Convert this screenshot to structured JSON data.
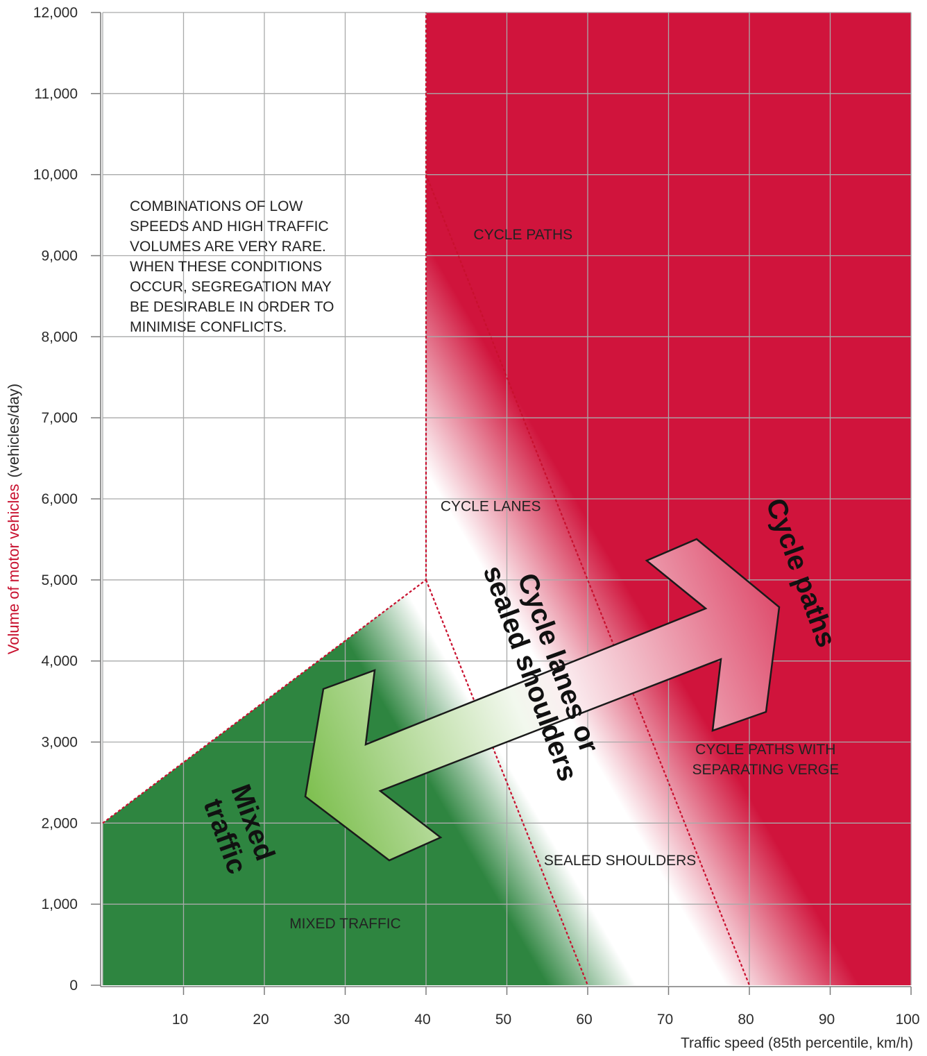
{
  "chart_data": {
    "type": "area",
    "xlabel": "Traffic speed (85th percentile, km/h)",
    "ylabel_main": "Volume of motor vehicles",
    "ylabel_unit": "(vehicles/day)",
    "xlim": [
      0,
      100
    ],
    "ylim": [
      0,
      12000
    ],
    "x_ticks": [
      {
        "value": 10,
        "label": "10"
      },
      {
        "value": 20,
        "label": "20"
      },
      {
        "value": 30,
        "label": "30"
      },
      {
        "value": 40,
        "label": "40"
      },
      {
        "value": 50,
        "label": "50"
      },
      {
        "value": 60,
        "label": "60"
      },
      {
        "value": 70,
        "label": "70"
      },
      {
        "value": 80,
        "label": "80"
      },
      {
        "value": 90,
        "label": "90"
      },
      {
        "value": 100,
        "label": "100"
      }
    ],
    "y_ticks": [
      {
        "value": 0,
        "label": "0"
      },
      {
        "value": 1000,
        "label": "1,000"
      },
      {
        "value": 2000,
        "label": "2,000"
      },
      {
        "value": 3000,
        "label": "3,000"
      },
      {
        "value": 4000,
        "label": "4,000"
      },
      {
        "value": 5000,
        "label": "5,000"
      },
      {
        "value": 6000,
        "label": "6,000"
      },
      {
        "value": 7000,
        "label": "7,000"
      },
      {
        "value": 8000,
        "label": "8,000"
      },
      {
        "value": 9000,
        "label": "9,000"
      },
      {
        "value": 10000,
        "label": "10,000"
      },
      {
        "value": 11000,
        "label": "11,000"
      },
      {
        "value": 12000,
        "label": "12,000"
      }
    ],
    "grid": true,
    "boundaries": [
      {
        "points": [
          [
            0,
            2000
          ],
          [
            40,
            5000
          ],
          [
            40,
            12000
          ]
        ]
      },
      {
        "points": [
          [
            40,
            5000
          ],
          [
            60,
            0
          ]
        ]
      },
      {
        "points": [
          [
            40,
            10000
          ],
          [
            80,
            0
          ]
        ]
      }
    ],
    "zone_labels": [
      {
        "text": "MIXED TRAFFIC",
        "x": 30,
        "y": 700
      },
      {
        "text": "SEALED SHOULDERS",
        "x": 64,
        "y": 1480
      },
      {
        "text": "CYCLE LANES",
        "x": 48,
        "y": 5850
      },
      {
        "text": "CYCLE PATHS",
        "x": 52,
        "y": 9200
      },
      {
        "text": "CYCLE PATHS WITH",
        "x": 82,
        "y": 2850
      },
      {
        "text": "SEPARATING VERGE",
        "x": 82,
        "y": 2600
      }
    ],
    "note_lines": [
      "COMBINATIONS OF LOW",
      "SPEEDS AND HIGH TRAFFIC",
      "VOLUMES ARE VERY RARE.",
      "WHEN THESE CONDITIONS",
      "OCCUR, SEGREGATION MAY",
      "BE DESIRABLE IN ORDER TO",
      "MINIMISE CONFLICTS."
    ],
    "arrow_labels": {
      "mixed": [
        "Mixed",
        "traffic"
      ],
      "lanes": [
        "Cycle lanes or",
        "sealed shoulders"
      ],
      "paths": "Cycle paths"
    },
    "colors": {
      "green": "#2e8540",
      "red": "#d0143c",
      "light_green": "#7dbf4e",
      "arrow_pink": "#de4d6d",
      "boundary": "#c8102e",
      "grid": "#a9aaaa",
      "ylabel_accent": "#c8102e"
    }
  }
}
